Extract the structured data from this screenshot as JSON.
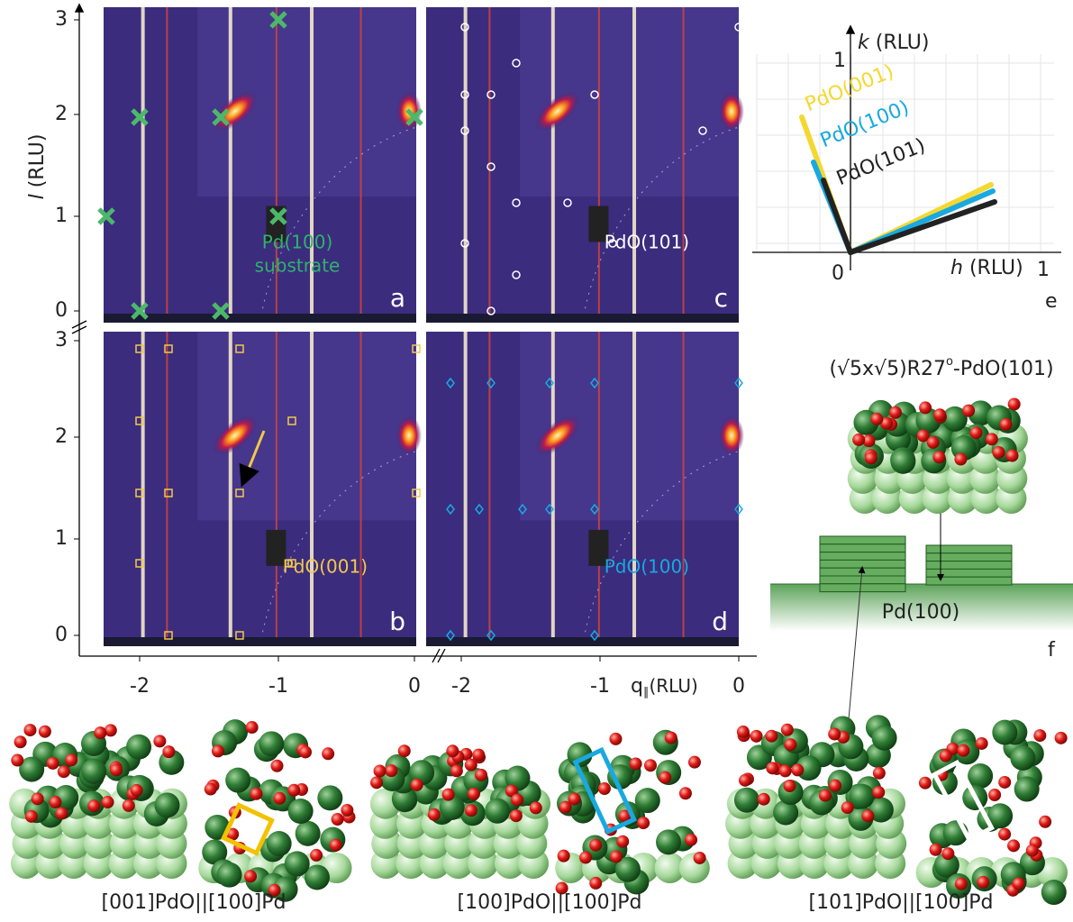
{
  "left_axis": {
    "label_symbol": "l",
    "label_unit": "(RLU)",
    "upper_ticks": [
      0,
      1,
      2,
      3
    ],
    "lower_ticks": [
      0,
      1,
      2,
      3
    ]
  },
  "bottom_axis": {
    "label_symbol": "q",
    "label_subscript": "∥",
    "label_unit": "(RLU)",
    "left_ticks": [
      -2,
      -1,
      0
    ],
    "right_ticks": [
      -2,
      -1,
      0
    ]
  },
  "panels": {
    "a": {
      "letter": "a",
      "annotation": [
        "Pd(100)",
        "substrate"
      ]
    },
    "b": {
      "letter": "b",
      "annotation": "PdO(001)"
    },
    "c": {
      "letter": "c",
      "annotation": "PdO(101)"
    },
    "d": {
      "letter": "d",
      "annotation": "PdO(100)"
    },
    "e": {
      "letter": "e",
      "k_symbol": "k",
      "k_unit": "(RLU)",
      "h_symbol": "h",
      "h_unit": "(RLU)",
      "origin": 0,
      "k_tick": 1,
      "h_tick": 1,
      "arrows": [
        "PdO(001)",
        "PdO(100)",
        "PdO(101)"
      ]
    },
    "f": {
      "letter": "f",
      "title_main": "(√5x√5)R27",
      "title_sup": "o",
      "title_end": "-PdO(101)",
      "substrate": "Pd(100)"
    }
  },
  "captions": [
    "[001]PdO||[100]Pd",
    "[100]PdO||[100]Pd",
    "[101]PdO||[100]Pd"
  ]
}
